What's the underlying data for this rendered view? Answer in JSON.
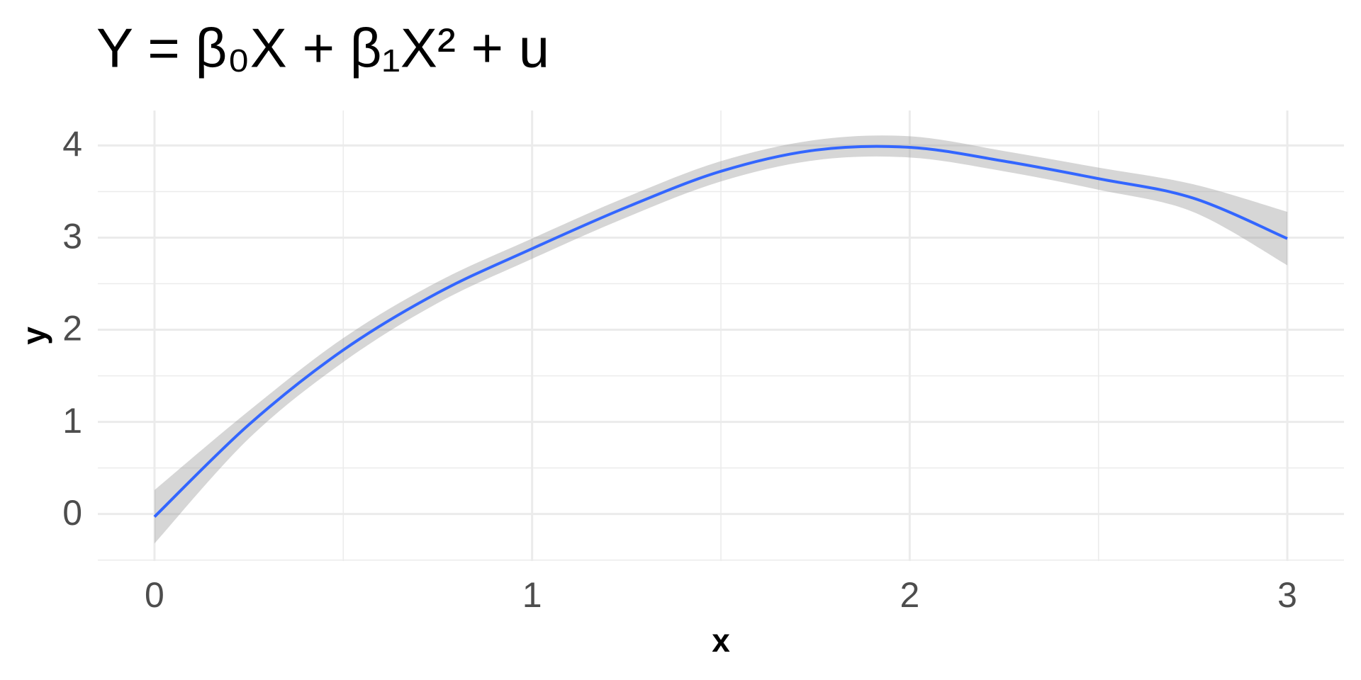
{
  "chart_data": {
    "type": "line",
    "title": "Y = β₀X + β₁X² + u",
    "x_label": "x",
    "y_label": "y",
    "x": [
      0,
      0.25,
      0.5,
      0.75,
      1,
      1.25,
      1.5,
      1.75,
      2,
      2.25,
      2.5,
      2.75,
      3
    ],
    "series": [
      {
        "color": "#3366ff",
        "band_color": "#999999",
        "values": [
          -0.03,
          0.97,
          1.78,
          2.4,
          2.88,
          3.33,
          3.72,
          3.95,
          3.98,
          3.83,
          3.64,
          3.43,
          2.99
        ],
        "lower": [
          -0.32,
          0.82,
          1.65,
          2.29,
          2.77,
          3.22,
          3.61,
          3.84,
          3.87,
          3.72,
          3.52,
          3.28,
          2.7
        ],
        "upper": [
          0.26,
          1.12,
          1.91,
          2.52,
          2.99,
          3.44,
          3.83,
          4.06,
          4.1,
          3.94,
          3.76,
          3.58,
          3.28
        ]
      }
    ],
    "xlim": [
      -0.15,
      3.15
    ],
    "ylim": [
      -0.51,
      4.38
    ],
    "xticks": [
      0,
      1,
      2,
      3
    ],
    "yticks": [
      0,
      1,
      2,
      3,
      4
    ],
    "xminor": [
      0.5,
      1.5,
      2.5
    ],
    "yminor": [
      -0.5,
      0.5,
      1.5,
      2.5,
      3.5
    ],
    "grid": true
  }
}
